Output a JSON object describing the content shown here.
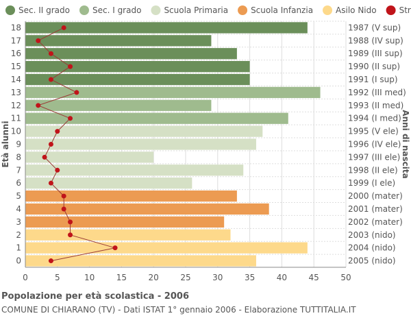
{
  "chart_data": {
    "type": "bar",
    "orientation": "horizontal",
    "title": "Popolazione per età scolastica - 2006",
    "subtitle": "COMUNE DI CHIARANO (TV) - Dati ISTAT 1° gennaio 2006 - Elaborazione TUTTITALIA.IT",
    "ylabel_left": "Età alunni",
    "ylabel_right": "Anni di nascita",
    "xlim": [
      0,
      50
    ],
    "xticks": [
      "0",
      "5",
      "10",
      "15",
      "20",
      "25",
      "30",
      "35",
      "40",
      "45",
      "50"
    ],
    "grid": true,
    "legend_position": "top",
    "legend": [
      {
        "name": "Sec. II grado",
        "color": "#6b8f5a"
      },
      {
        "name": "Sec. I grado",
        "color": "#9fbb8e"
      },
      {
        "name": "Scuola Primaria",
        "color": "#d5e0c5"
      },
      {
        "name": "Scuola Infanzia",
        "color": "#ec9b52"
      },
      {
        "name": "Asilo Nido",
        "color": "#fdd98b"
      },
      {
        "name": "Stranieri",
        "color": "#c0141a"
      }
    ],
    "rows": [
      {
        "age": "18",
        "birth": "1987 (V sup)",
        "value": 44,
        "stranieri": 6,
        "group": 0
      },
      {
        "age": "17",
        "birth": "1988 (IV sup)",
        "value": 29,
        "stranieri": 2,
        "group": 0
      },
      {
        "age": "16",
        "birth": "1989 (III sup)",
        "value": 33,
        "stranieri": 4,
        "group": 0
      },
      {
        "age": "15",
        "birth": "1990 (II sup)",
        "value": 35,
        "stranieri": 7,
        "group": 0
      },
      {
        "age": "14",
        "birth": "1991 (I sup)",
        "value": 35,
        "stranieri": 4,
        "group": 0
      },
      {
        "age": "13",
        "birth": "1992 (III med)",
        "value": 46,
        "stranieri": 8,
        "group": 1
      },
      {
        "age": "12",
        "birth": "1993 (II med)",
        "value": 29,
        "stranieri": 2,
        "group": 1
      },
      {
        "age": "11",
        "birth": "1994 (I med)",
        "value": 41,
        "stranieri": 7,
        "group": 1
      },
      {
        "age": "10",
        "birth": "1995 (V ele)",
        "value": 37,
        "stranieri": 5,
        "group": 2
      },
      {
        "age": "9",
        "birth": "1996 (IV ele)",
        "value": 36,
        "stranieri": 4,
        "group": 2
      },
      {
        "age": "8",
        "birth": "1997 (III ele)",
        "value": 20,
        "stranieri": 3,
        "group": 2
      },
      {
        "age": "7",
        "birth": "1998 (II ele)",
        "value": 34,
        "stranieri": 5,
        "group": 2
      },
      {
        "age": "6",
        "birth": "1999 (I ele)",
        "value": 26,
        "stranieri": 4,
        "group": 2
      },
      {
        "age": "5",
        "birth": "2000 (mater)",
        "value": 33,
        "stranieri": 6,
        "group": 3
      },
      {
        "age": "4",
        "birth": "2001 (mater)",
        "value": 38,
        "stranieri": 6,
        "group": 3
      },
      {
        "age": "3",
        "birth": "2002 (mater)",
        "value": 31,
        "stranieri": 7,
        "group": 3
      },
      {
        "age": "2",
        "birth": "2003 (nido)",
        "value": 32,
        "stranieri": 7,
        "group": 4
      },
      {
        "age": "1",
        "birth": "2004 (nido)",
        "value": 44,
        "stranieri": 14,
        "group": 4
      },
      {
        "age": "0",
        "birth": "2005 (nido)",
        "value": 36,
        "stranieri": 4,
        "group": 4
      }
    ]
  }
}
